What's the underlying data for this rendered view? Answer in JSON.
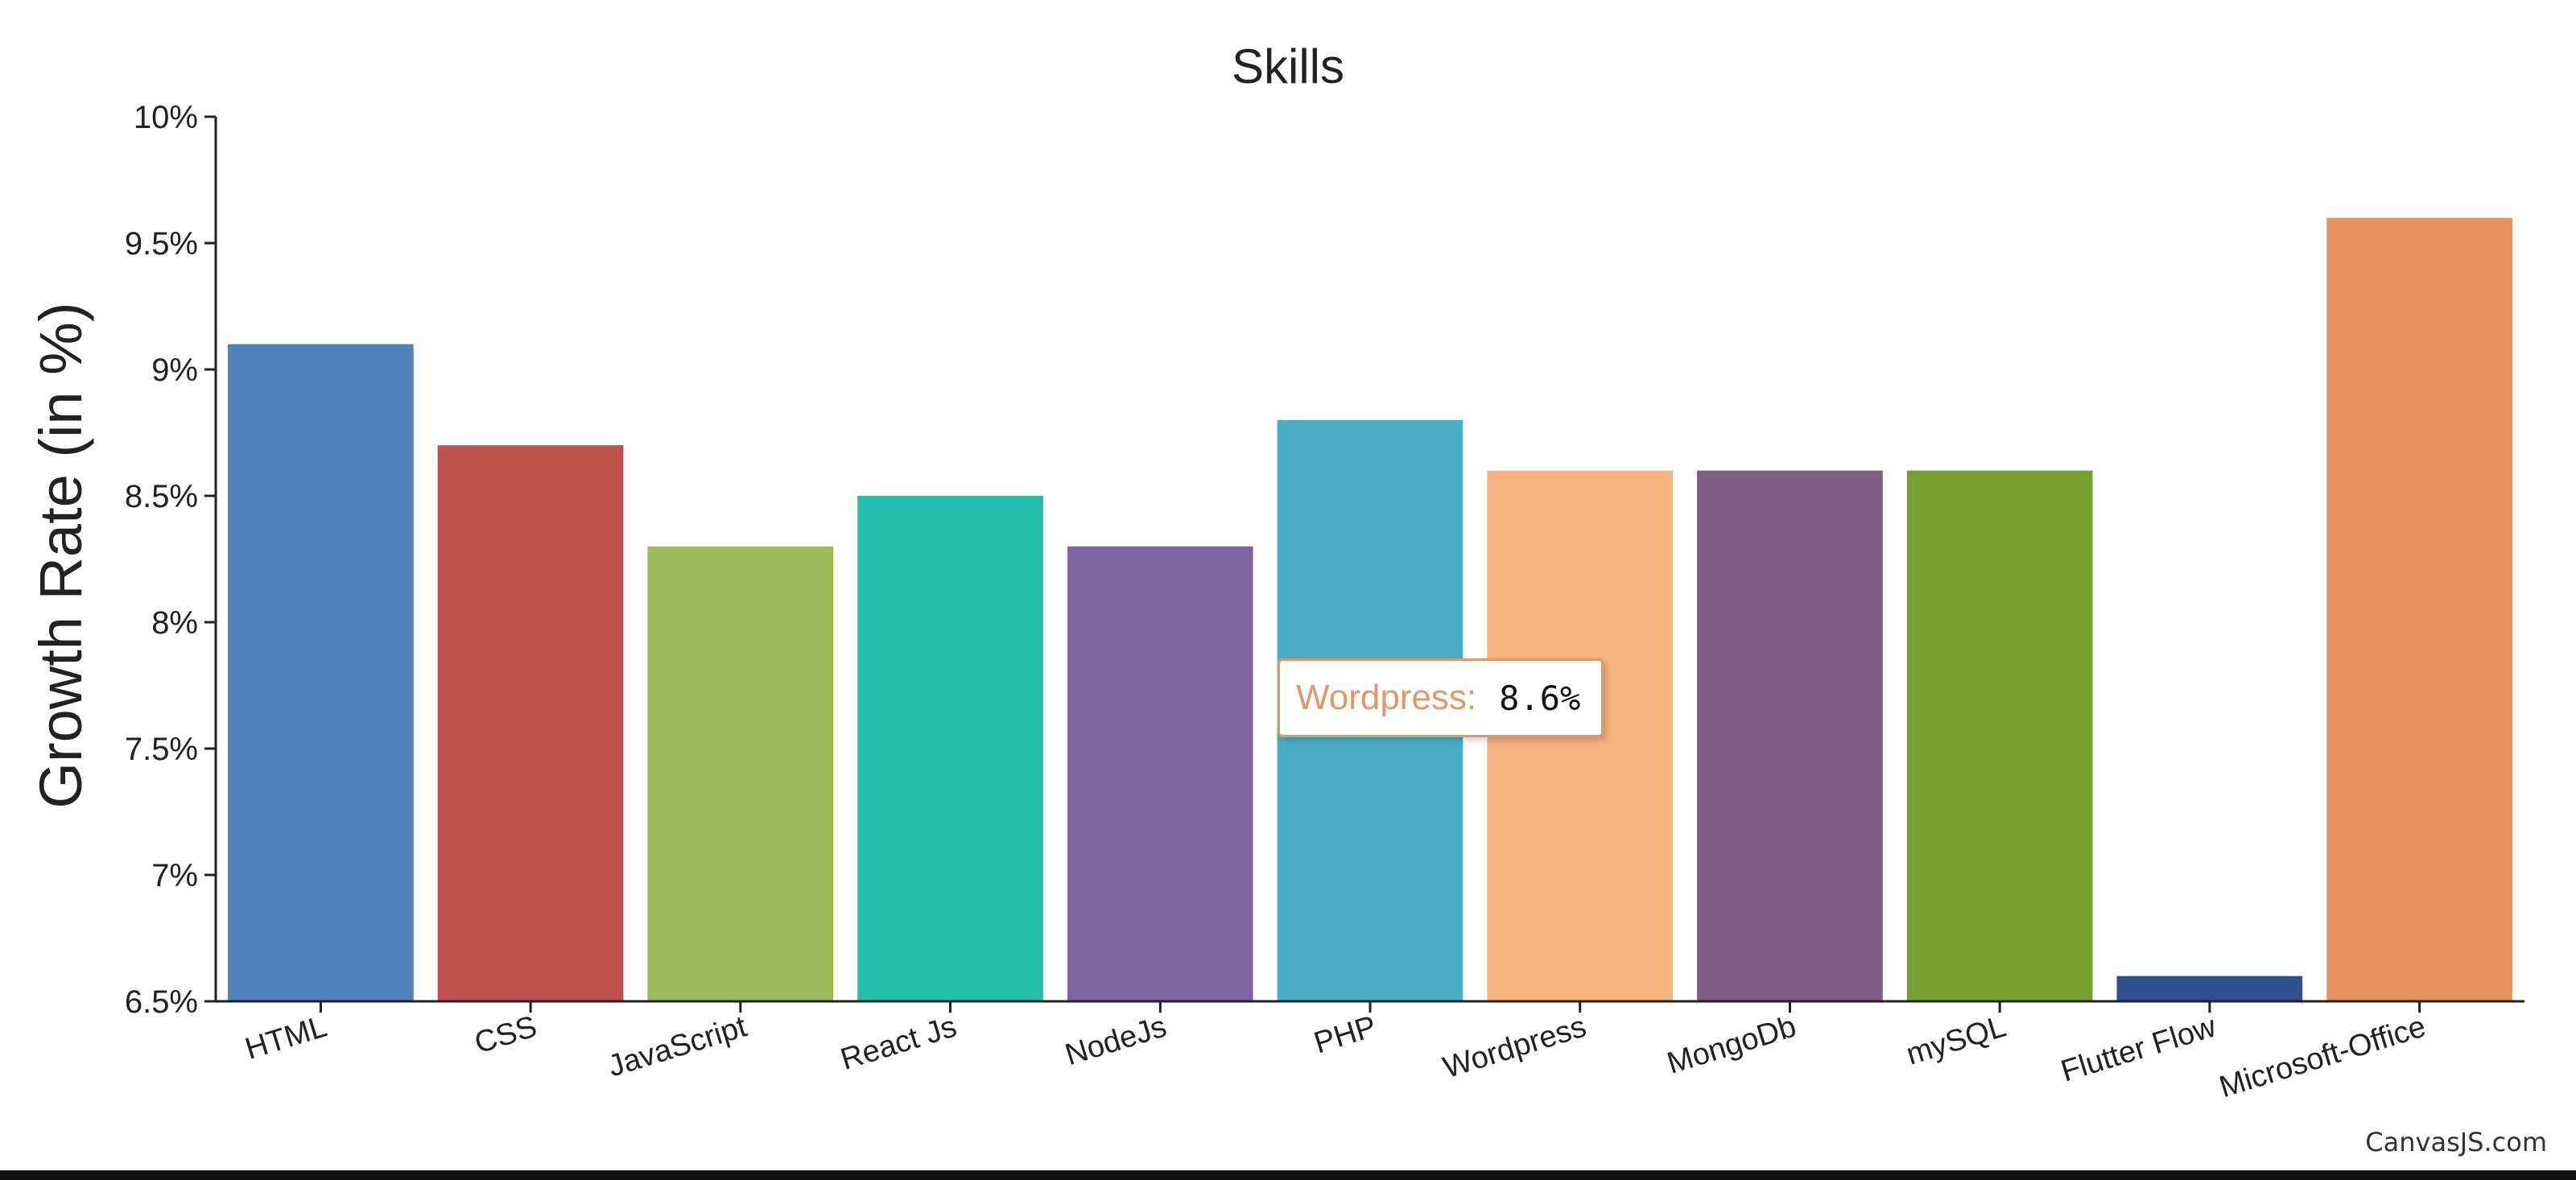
{
  "chart_data": {
    "type": "bar",
    "title": "Skills",
    "xlabel": "",
    "ylabel": "Growth Rate (in %)",
    "ylim": [
      6.5,
      10
    ],
    "yticks": [
      6.5,
      7,
      7.5,
      8,
      8.5,
      9,
      9.5,
      10
    ],
    "ytick_labels": [
      "6.5%",
      "7%",
      "7.5%",
      "8%",
      "8.5%",
      "9%",
      "9.5%",
      "10%"
    ],
    "categories": [
      "HTML",
      "CSS",
      "JavaScript",
      "React Js",
      "NodeJs",
      "PHP",
      "Wordpress",
      "MongoDb",
      "mySQL",
      "Flutter Flow",
      "Microsoft-Office"
    ],
    "values": [
      9.1,
      8.7,
      8.3,
      8.5,
      8.3,
      8.8,
      8.6,
      8.6,
      8.6,
      6.6,
      9.6
    ],
    "colors": [
      "#4f81bd",
      "#c0504d",
      "#9bbb59",
      "#23bfaa",
      "#8064a2",
      "#4aacc5",
      "#f5b37f",
      "#7f5e85",
      "#77a033",
      "#2f4f8f",
      "#e6925f"
    ],
    "grid": false,
    "legend": "none"
  },
  "tooltip": {
    "label": "Wordpress",
    "separator": ":",
    "value": "8.6%",
    "color": "#e0986a"
  },
  "credit": "CanvasJS.com"
}
